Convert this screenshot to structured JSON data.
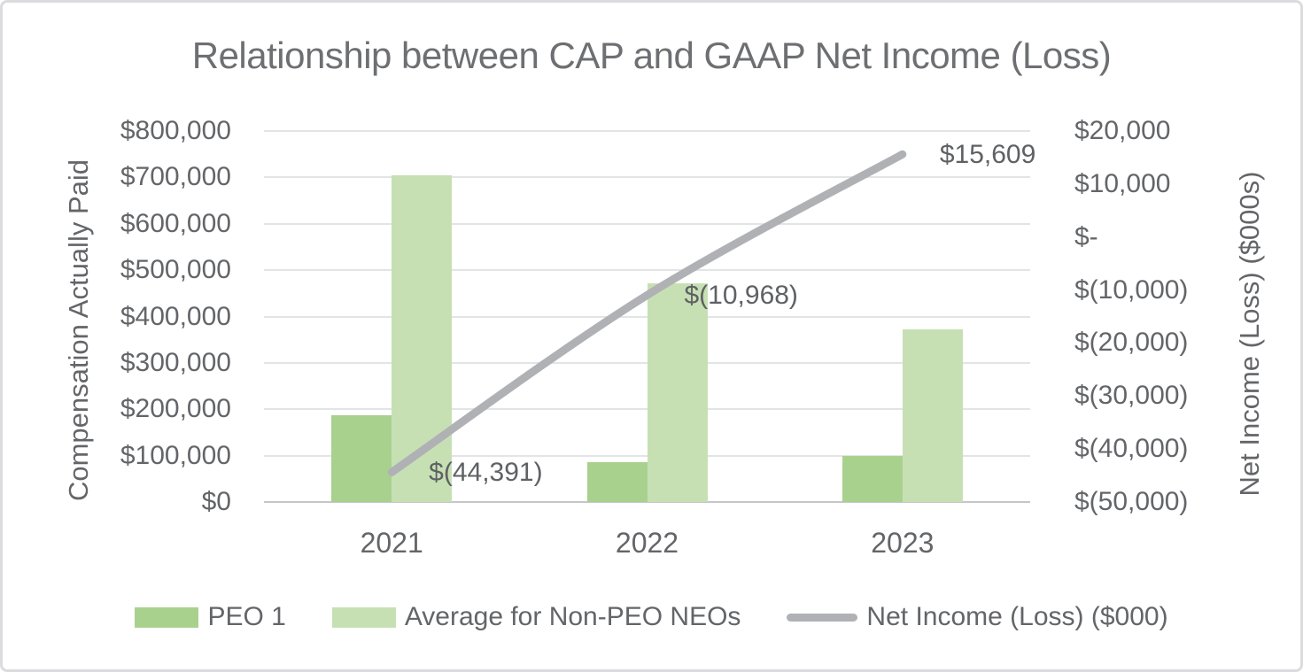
{
  "chart_data": {
    "type": "bar",
    "subtype": "grouped-bars-with-line-overlay",
    "title": "Relationship between CAP and GAAP Net Income (Loss)",
    "categories": [
      "2021",
      "2022",
      "2023"
    ],
    "bar_series": [
      {
        "name": "PEO 1",
        "color": "#a9d18e",
        "values": [
          188000,
          86000,
          100000
        ]
      },
      {
        "name": "Average for Non-PEO NEOs",
        "color": "#c6e0b4",
        "values": [
          704000,
          471000,
          372000
        ]
      }
    ],
    "line_series": {
      "name": "Net Income (Loss) ($000)",
      "color": "#b0b1b4",
      "values": [
        -44391,
        -10968,
        15609
      ],
      "labels": [
        "$(44,391)",
        "$(10,968)",
        "$15,609"
      ]
    },
    "left_axis": {
      "title": "Compensation Actually Paid",
      "min": 0,
      "max": 800000,
      "step": 100000,
      "ticks": [
        "$800,000",
        "$700,000",
        "$600,000",
        "$500,000",
        "$400,000",
        "$300,000",
        "$200,000",
        "$100,000",
        "$0"
      ]
    },
    "right_axis": {
      "title": "Net Income (Loss) ($000s)",
      "min": -50000,
      "max": 20000,
      "step": 10000,
      "ticks": [
        "$20,000",
        "$10,000",
        "$-",
        "$(10,000)",
        "$(20,000)",
        "$(30,000)",
        "$(40,000)",
        "$(50,000)"
      ]
    },
    "legend_position": "bottom",
    "grid": true
  },
  "colors": {
    "bar_dark_green": "#a9d18e",
    "bar_light_green": "#c6e0b4",
    "line_gray": "#b0b1b4",
    "text_gray": "#636568",
    "title_gray": "#6d6f72",
    "gridline": "#e3e4e6"
  }
}
